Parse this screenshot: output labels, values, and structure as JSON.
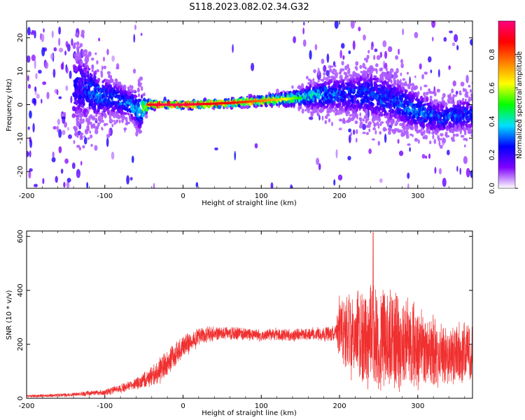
{
  "title": "S118.2023.082.02.34.G32",
  "chart_data": [
    {
      "type": "heatmap",
      "xlabel": "Height of straight line (km)",
      "ylabel": "Frequency (Hz)",
      "xlim": [
        -200,
        370
      ],
      "ylim": [
        -25,
        25
      ],
      "xticks": [
        -200,
        -100,
        0,
        100,
        200,
        300
      ],
      "yticks": [
        -20,
        -10,
        0,
        10,
        20
      ],
      "grid": false,
      "colorbar": {
        "label": "Normalized spectral amplitude",
        "range": [
          0,
          1
        ],
        "ticks": [
          "0.0",
          "0.2",
          "0.4",
          "0.6",
          "0.8"
        ],
        "colormap": [
          "#ffffff",
          "#8000ff",
          "#0000ff",
          "#00e0ff",
          "#00ff00",
          "#ffff00",
          "#ff8000",
          "#ff0000",
          "#ff0080"
        ]
      },
      "ridge": {
        "x": [
          -130,
          -110,
          -90,
          -70,
          -55,
          -45,
          -30,
          0,
          30,
          60,
          90,
          120,
          150,
          180,
          210,
          240,
          270,
          300,
          330,
          360
        ],
        "freq": [
          5,
          3,
          2,
          0.5,
          -2,
          0,
          0,
          0,
          0.2,
          0.5,
          1,
          1.5,
          2,
          3,
          3,
          3,
          1,
          -2,
          -4,
          -3
        ],
        "spread": [
          14,
          9,
          7,
          5,
          7,
          1.2,
          0.8,
          0.8,
          0.9,
          1,
          1.2,
          1.5,
          3,
          6,
          7,
          9,
          9,
          7,
          6,
          6
        ],
        "amplitude": [
          0.25,
          0.35,
          0.3,
          0.35,
          0.4,
          0.85,
          0.95,
          0.95,
          0.9,
          0.88,
          0.8,
          0.7,
          0.5,
          0.35,
          0.3,
          0.3,
          0.3,
          0.35,
          0.3,
          0.3
        ]
      }
    },
    {
      "type": "line",
      "xlabel": "Height of straight line (km)",
      "ylabel": "SNR (10 * v/v)",
      "xlim": [
        -200,
        370
      ],
      "ylim": [
        0,
        620
      ],
      "xticks": [
        -200,
        -100,
        0,
        100,
        200,
        300
      ],
      "yticks": [
        0,
        200,
        400,
        600
      ],
      "grid": false,
      "color": "#f03030",
      "envelope": {
        "x": [
          -200,
          -150,
          -100,
          -80,
          -60,
          -40,
          -20,
          0,
          20,
          40,
          60,
          100,
          150,
          195,
          200,
          220,
          250,
          280,
          310,
          340,
          370
        ],
        "mean": [
          8,
          12,
          22,
          35,
          55,
          80,
          130,
          190,
          230,
          240,
          240,
          235,
          235,
          240,
          260,
          230,
          220,
          210,
          170,
          160,
          170
        ],
        "noise": [
          4,
          6,
          10,
          15,
          20,
          35,
          45,
          35,
          30,
          25,
          22,
          20,
          20,
          25,
          110,
          160,
          170,
          160,
          130,
          100,
          100
        ]
      },
      "peak": {
        "x": 243,
        "y": 615
      }
    }
  ]
}
